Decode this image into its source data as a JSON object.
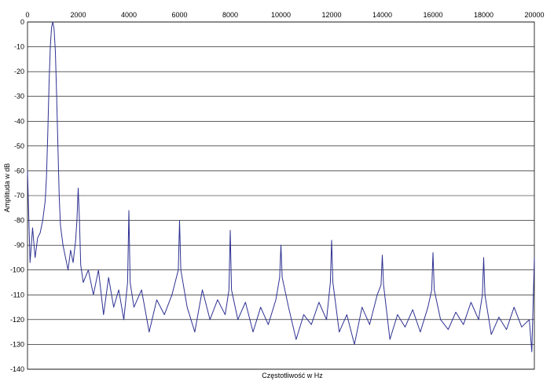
{
  "chart_data": {
    "type": "line",
    "title": "",
    "xlabel": "Częstotliwość w Hz",
    "ylabel": "Amplituda w dB",
    "xlim": [
      0,
      20000
    ],
    "ylim": [
      -140,
      0
    ],
    "x_ticks": [
      0,
      2000,
      4000,
      6000,
      8000,
      10000,
      12000,
      14000,
      16000,
      18000,
      20000
    ],
    "y_ticks": [
      0,
      -10,
      -20,
      -30,
      -40,
      -50,
      -60,
      -70,
      -80,
      -90,
      -100,
      -110,
      -120,
      -130,
      -140
    ],
    "x_axis_position": "top",
    "grid": "horizontal",
    "legend": "none",
    "series_color": "#2e3192",
    "series": [
      {
        "x": [
          0,
          100,
          200,
          300,
          400,
          500,
          600,
          700,
          750,
          800,
          850,
          900,
          950,
          1000,
          1050,
          1100,
          1150,
          1200,
          1250,
          1300,
          1400,
          1500,
          1600,
          1700,
          1800,
          1900,
          1950,
          2000,
          2050,
          2100,
          2200,
          2400,
          2600,
          2800,
          3000,
          3200,
          3400,
          3600,
          3800,
          3950,
          4000,
          4050,
          4200,
          4500,
          4800,
          5100,
          5400,
          5700,
          5950,
          6000,
          6050,
          6300,
          6600,
          6900,
          7200,
          7500,
          7800,
          7950,
          8000,
          8050,
          8300,
          8600,
          8900,
          9200,
          9500,
          9800,
          9950,
          10000,
          10050,
          10300,
          10600,
          10900,
          11200,
          11500,
          11800,
          11950,
          12000,
          12050,
          12300,
          12600,
          12900,
          13200,
          13500,
          13800,
          13950,
          14000,
          14050,
          14300,
          14600,
          14900,
          15200,
          15500,
          15800,
          15950,
          16000,
          16050,
          16300,
          16600,
          16900,
          17200,
          17500,
          17800,
          17950,
          18000,
          18050,
          18300,
          18600,
          18900,
          19200,
          19500,
          19800,
          19900,
          20000
        ],
        "y": [
          -60,
          -97,
          -83,
          -95,
          -87,
          -85,
          -80,
          -72,
          -62,
          -45,
          -25,
          -10,
          -2,
          0,
          -3,
          -12,
          -30,
          -50,
          -70,
          -82,
          -90,
          -95,
          -100,
          -92,
          -97,
          -88,
          -80,
          -67,
          -80,
          -98,
          -105,
          -100,
          -110,
          -100,
          -118,
          -103,
          -115,
          -108,
          -120,
          -105,
          -76,
          -105,
          -115,
          -108,
          -125,
          -112,
          -118,
          -110,
          -100,
          -80,
          -100,
          -115,
          -125,
          -108,
          -120,
          -112,
          -118,
          -108,
          -84,
          -108,
          -120,
          -113,
          -125,
          -115,
          -122,
          -112,
          -103,
          -90,
          -103,
          -115,
          -128,
          -118,
          -122,
          -113,
          -120,
          -105,
          -88,
          -105,
          -125,
          -118,
          -130,
          -115,
          -122,
          -110,
          -106,
          -94,
          -106,
          -128,
          -118,
          -123,
          -116,
          -125,
          -115,
          -108,
          -93,
          -108,
          -120,
          -124,
          -117,
          -122,
          -113,
          -120,
          -110,
          -95,
          -110,
          -126,
          -119,
          -124,
          -115,
          -123,
          -120,
          -133,
          -95
        ]
      }
    ]
  }
}
